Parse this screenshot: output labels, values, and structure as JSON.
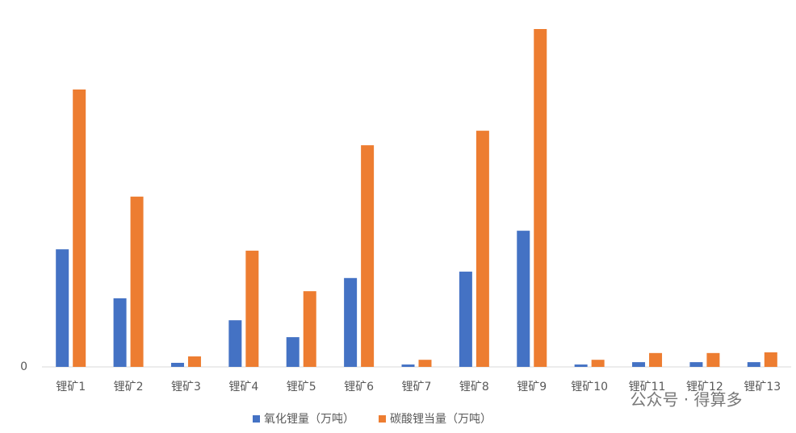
{
  "chart_data": {
    "type": "bar",
    "categories": [
      "锂矿1",
      "锂矿2",
      "锂矿3",
      "锂矿4",
      "锂矿5",
      "锂矿6",
      "锂矿7",
      "锂矿8",
      "锂矿9",
      "锂矿10",
      "锂矿11",
      "锂矿12",
      "锂矿13"
    ],
    "series": [
      {
        "name": "氧化锂量（万吨）",
        "color": "#4472c4",
        "values": [
          34.8,
          20.3,
          1.2,
          13.8,
          8.8,
          26.3,
          0.7,
          28.2,
          40.3,
          0.7,
          1.4,
          1.4,
          1.4
        ]
      },
      {
        "name": "碳酸锂当量（万吨）",
        "color": "#ed7d31",
        "values": [
          82.1,
          50.4,
          3.1,
          34.4,
          22.4,
          65.6,
          2.1,
          69.9,
          100,
          2.1,
          4.1,
          4.1,
          4.3
        ]
      }
    ],
    "ylim": [
      0,
      100
    ],
    "yticks": [
      0
    ],
    "grid": false,
    "legend": "bottom",
    "watermark": "公众号 · 得算多"
  }
}
